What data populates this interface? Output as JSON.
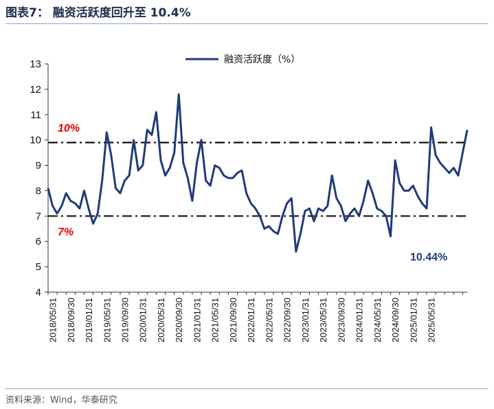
{
  "figure": {
    "title": "图表7：  融资活跃度回升至 10.4%",
    "source": "资料来源：Wind，华泰研究"
  },
  "chart_data": {
    "type": "line",
    "title": "",
    "xlabel": "",
    "ylabel": "",
    "ylim": [
      4,
      13
    ],
    "yticks": [
      "13",
      "12",
      "11",
      "10",
      "9",
      "8",
      "7",
      "6",
      "5",
      "4"
    ],
    "xticks": [
      "2018/05/31",
      "2018/09/30",
      "2019/01/31",
      "2019/05/31",
      "2019/09/30",
      "2020/01/31",
      "2020/05/31",
      "2020/09/30",
      "2021/01/31",
      "2021/05/31",
      "2021/09/30",
      "2022/01/31",
      "2022/05/31",
      "2022/09/30",
      "2023/01/31",
      "2023/05/31",
      "2023/09/30",
      "2024/01/31",
      "2024/05/31",
      "2024/09/30",
      "2025/01/31",
      "2025/05/31"
    ],
    "legend": "top-center",
    "series": [
      {
        "name": "融资活跃度（%）",
        "color": "#1f3a7a",
        "points": [
          [
            0,
            8.1
          ],
          [
            0.5,
            7.4
          ],
          [
            1,
            7.1
          ],
          [
            1.5,
            7.4
          ],
          [
            2,
            7.9
          ],
          [
            2.5,
            7.6
          ],
          [
            3,
            7.5
          ],
          [
            3.5,
            7.3
          ],
          [
            4,
            8.0
          ],
          [
            4.5,
            7.3
          ],
          [
            5,
            6.7
          ],
          [
            5.5,
            7.1
          ],
          [
            6,
            8.4
          ],
          [
            6.5,
            10.3
          ],
          [
            7,
            9.4
          ],
          [
            7.5,
            8.1
          ],
          [
            8,
            7.9
          ],
          [
            8.5,
            8.4
          ],
          [
            9,
            8.6
          ],
          [
            9.5,
            10.0
          ],
          [
            10,
            8.8
          ],
          [
            10.5,
            9.0
          ],
          [
            11,
            10.4
          ],
          [
            11.5,
            10.2
          ],
          [
            12,
            11.1
          ],
          [
            12.5,
            9.2
          ],
          [
            13,
            8.6
          ],
          [
            13.5,
            8.9
          ],
          [
            14,
            9.5
          ],
          [
            14.5,
            11.8
          ],
          [
            15,
            9.1
          ],
          [
            15.5,
            8.5
          ],
          [
            16,
            7.6
          ],
          [
            16.5,
            9.1
          ],
          [
            17,
            10.0
          ],
          [
            17.5,
            8.4
          ],
          [
            18,
            8.2
          ],
          [
            18.5,
            9.0
          ],
          [
            19,
            8.9
          ],
          [
            19.5,
            8.6
          ],
          [
            20,
            8.5
          ],
          [
            20.5,
            8.5
          ],
          [
            21,
            8.7
          ],
          [
            21.5,
            8.8
          ],
          [
            22,
            7.9
          ],
          [
            22.5,
            7.5
          ],
          [
            23,
            7.3
          ],
          [
            23.5,
            7.0
          ],
          [
            24,
            6.5
          ],
          [
            24.5,
            6.6
          ],
          [
            25,
            6.4
          ],
          [
            25.5,
            6.3
          ],
          [
            26,
            7.0
          ],
          [
            26.5,
            7.5
          ],
          [
            27,
            7.7
          ],
          [
            27.5,
            5.6
          ],
          [
            28,
            6.3
          ],
          [
            28.5,
            7.2
          ],
          [
            29,
            7.3
          ],
          [
            29.5,
            6.8
          ],
          [
            30,
            7.3
          ],
          [
            30.5,
            7.2
          ],
          [
            31,
            7.4
          ],
          [
            31.5,
            8.6
          ],
          [
            32,
            7.7
          ],
          [
            32.5,
            7.4
          ],
          [
            33,
            6.8
          ],
          [
            33.5,
            7.1
          ],
          [
            34,
            7.3
          ],
          [
            34.5,
            7.0
          ],
          [
            35,
            7.6
          ],
          [
            35.5,
            8.4
          ],
          [
            36,
            7.9
          ],
          [
            36.5,
            7.3
          ],
          [
            37,
            7.2
          ],
          [
            37.5,
            7.0
          ],
          [
            38,
            6.2
          ],
          [
            38.5,
            9.2
          ],
          [
            39,
            8.3
          ],
          [
            39.5,
            8.0
          ],
          [
            40,
            8.0
          ],
          [
            40.5,
            8.2
          ],
          [
            41,
            7.8
          ],
          [
            41.5,
            7.5
          ],
          [
            42,
            7.3
          ],
          [
            42.5,
            10.5
          ],
          [
            43,
            9.4
          ],
          [
            43.5,
            9.1
          ],
          [
            44,
            8.9
          ],
          [
            44.5,
            8.7
          ],
          [
            45,
            8.9
          ],
          [
            45.5,
            8.6
          ],
          [
            46,
            9.5
          ],
          [
            46.5,
            10.4
          ]
        ]
      }
    ],
    "reference_lines": [
      {
        "y": 9.9,
        "label": "10%",
        "color": "#e00000"
      },
      {
        "y": 7.0,
        "label": "7%",
        "color": "#e00000"
      }
    ],
    "annotations": [
      {
        "text": "10.44%",
        "color": "#1f3a7a"
      }
    ]
  }
}
